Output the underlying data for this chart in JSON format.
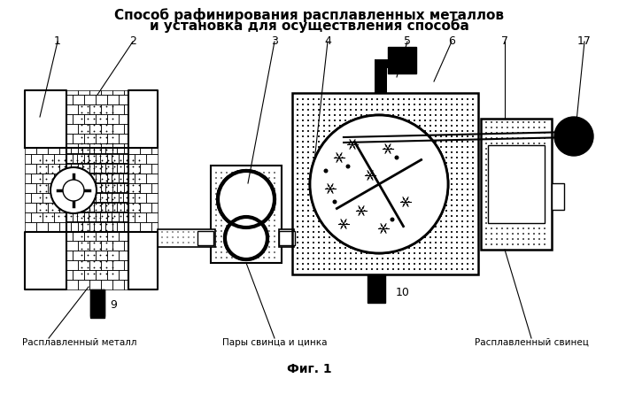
{
  "title_line1": "Способ рафинирования расплавленных металлов",
  "title_line2": "и установка для осуществления способа",
  "fig_label": "Фиг. 1",
  "label_1": "1",
  "label_2": "2",
  "label_3": "3",
  "label_4": "4",
  "label_5": "5",
  "label_6": "6",
  "label_7": "7",
  "label_17": "17",
  "label_9": "9",
  "label_10": "10",
  "text_left": "Расплавленный металл",
  "text_center": "Пары свинца и цинка",
  "text_right": "Расплавленный свинец",
  "bg_color": "#ffffff",
  "line_color": "#000000"
}
